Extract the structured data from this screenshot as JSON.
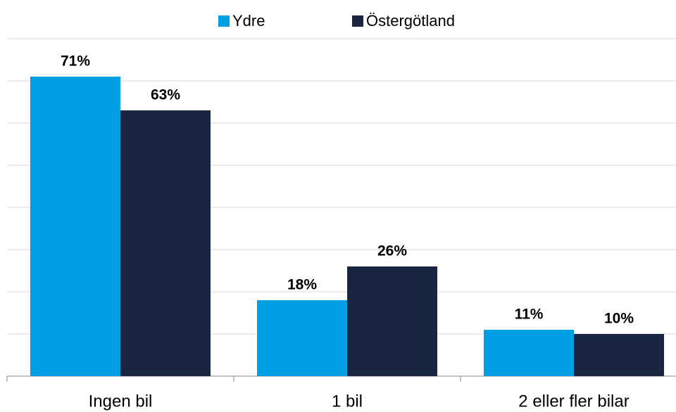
{
  "chart_data": {
    "type": "bar",
    "categories": [
      "Ingen bil",
      "1 bil",
      "2 eller fler bilar"
    ],
    "series": [
      {
        "name": "Ydre",
        "color": "#009fe3",
        "values": [
          71,
          18,
          11
        ],
        "value_labels": [
          "71%",
          "18%",
          "11%"
        ]
      },
      {
        "name": "Östergötland",
        "color": "#1a2640",
        "values": [
          63,
          26,
          10
        ],
        "value_labels": [
          "63%",
          "26%",
          "10%"
        ]
      }
    ],
    "ylim": [
      0,
      80
    ],
    "yticks": [
      0,
      10,
      20,
      30,
      40,
      50,
      60,
      70,
      80
    ],
    "grid": true,
    "legend": "top"
  }
}
